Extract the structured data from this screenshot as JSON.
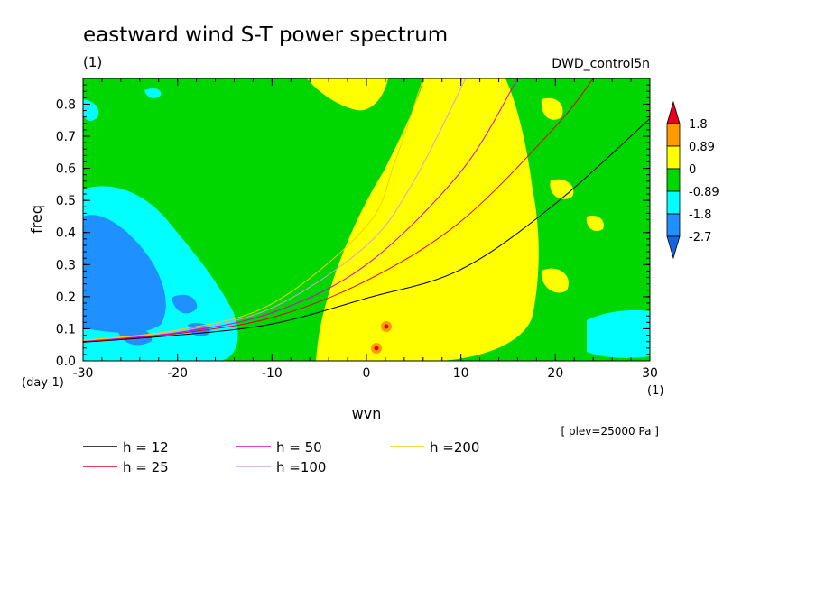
{
  "chart_data": {
    "type": "heatmap",
    "title": "eastward wind S-T power spectrum",
    "title_units": "(1)",
    "dataset": "DWD_control5n",
    "xlabel": "wvn",
    "xunits": "(1)",
    "ylabel": "freq",
    "yunits": "(day-1)",
    "level_note": "[ plev=25000 Pa ]",
    "xlim": [
      -30,
      30
    ],
    "ylim": [
      0.0,
      0.88
    ],
    "x_ticks": [
      "-30",
      "-20",
      "-10",
      "0",
      "10",
      "20",
      "30"
    ],
    "y_ticks": [
      "0.0",
      "0.1",
      "0.2",
      "0.3",
      "0.4",
      "0.5",
      "0.6",
      "0.7",
      "0.8"
    ],
    "colorbar": {
      "levels": [
        "1.8",
        "0.89",
        "0",
        "-0.89",
        "-1.8",
        "-2.7"
      ],
      "colors": [
        "#e8001c",
        "#ff9a00",
        "#ffff00",
        "#00d600",
        "#00ffff",
        "#1e90ff",
        "#1464e6"
      ]
    },
    "series": [
      {
        "name": "h = 12",
        "color": "#000000",
        "x": [
          -30,
          -20,
          -10,
          0,
          10,
          20,
          30
        ],
        "y": [
          0.058,
          0.08,
          0.115,
          0.195,
          0.285,
          0.49,
          0.755
        ]
      },
      {
        "name": "h = 25",
        "color": "#e8001c",
        "x": [
          -30,
          -20,
          -10,
          0,
          10,
          20,
          24
        ],
        "y": [
          0.06,
          0.085,
          0.135,
          0.25,
          0.435,
          0.73,
          0.88
        ]
      },
      {
        "name": "h = 50",
        "color": "#e000c8",
        "x": [
          -30,
          -20,
          -10,
          0,
          10,
          16
        ],
        "y": [
          0.062,
          0.088,
          0.15,
          0.3,
          0.59,
          0.88
        ]
      },
      {
        "name": "h =100",
        "color": "#d8a0d8",
        "x": [
          -30,
          -20,
          -10,
          0,
          5,
          10.5
        ],
        "y": [
          0.063,
          0.092,
          0.165,
          0.36,
          0.56,
          0.88
        ]
      },
      {
        "name": "h =200",
        "color": "#f0d000",
        "x": [
          -30,
          -20,
          -10,
          0,
          3,
          6
        ],
        "y": [
          0.064,
          0.096,
          0.178,
          0.42,
          0.62,
          0.88
        ]
      }
    ]
  }
}
